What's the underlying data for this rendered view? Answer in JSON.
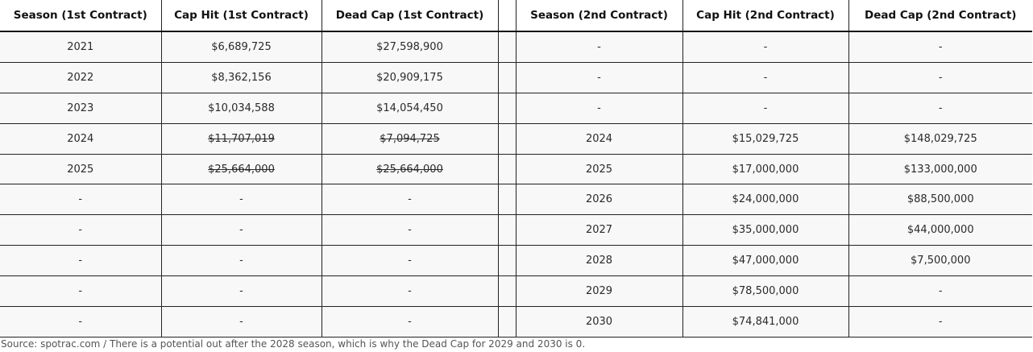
{
  "table": {
    "headers": [
      "Season (1st Contract)",
      "Cap Hit (1st Contract)",
      "Dead Cap (1st Contract)",
      "",
      "Season (2nd Contract)",
      "Cap Hit (2nd Contract)",
      "Dead Cap (2nd Contract)"
    ],
    "rows": [
      {
        "cells": [
          "2021",
          "$6,689,725",
          "$27,598,900",
          "",
          "-",
          "-",
          "-"
        ],
        "struck": [
          false,
          false,
          false,
          false,
          false,
          false,
          false
        ]
      },
      {
        "cells": [
          "2022",
          "$8,362,156",
          "$20,909,175",
          "",
          "-",
          "-",
          "-"
        ],
        "struck": [
          false,
          false,
          false,
          false,
          false,
          false,
          false
        ]
      },
      {
        "cells": [
          "2023",
          "$10,034,588",
          "$14,054,450",
          "",
          "-",
          "-",
          "-"
        ],
        "struck": [
          false,
          false,
          false,
          false,
          false,
          false,
          false
        ]
      },
      {
        "cells": [
          "2024",
          "$11,707,019",
          "$7,094,725",
          "",
          "2024",
          "$15,029,725",
          "$148,029,725"
        ],
        "struck": [
          false,
          true,
          true,
          false,
          false,
          false,
          false
        ]
      },
      {
        "cells": [
          "2025",
          "$25,664,000",
          "$25,664,000",
          "",
          "2025",
          "$17,000,000",
          "$133,000,000"
        ],
        "struck": [
          false,
          true,
          true,
          false,
          false,
          false,
          false
        ]
      },
      {
        "cells": [
          "-",
          "-",
          "-",
          "",
          "2026",
          "$24,000,000",
          "$88,500,000"
        ],
        "struck": [
          false,
          false,
          false,
          false,
          false,
          false,
          false
        ]
      },
      {
        "cells": [
          "-",
          "-",
          "-",
          "",
          "2027",
          "$35,000,000",
          "$44,000,000"
        ],
        "struck": [
          false,
          false,
          false,
          false,
          false,
          false,
          false
        ]
      },
      {
        "cells": [
          "-",
          "-",
          "-",
          "",
          "2028",
          "$47,000,000",
          "$7,500,000"
        ],
        "struck": [
          false,
          false,
          false,
          false,
          false,
          false,
          false
        ]
      },
      {
        "cells": [
          "-",
          "-",
          "-",
          "",
          "2029",
          "$78,500,000",
          "-"
        ],
        "struck": [
          false,
          false,
          false,
          false,
          false,
          false,
          false
        ]
      },
      {
        "cells": [
          "-",
          "-",
          "-",
          "",
          "2030",
          "$74,841,000",
          "-"
        ],
        "struck": [
          false,
          false,
          false,
          false,
          false,
          false,
          false
        ]
      }
    ]
  },
  "footnote": "Source: spotrac.com / There is a potential out after the 2028 season, which is why the Dead Cap for 2029 and 2030 is 0.",
  "colors": {
    "background": "#f8f8f8",
    "border": "#222222",
    "header_text": "#111111",
    "cell_text": "#2a2a2a",
    "footnote_text": "#555555"
  }
}
